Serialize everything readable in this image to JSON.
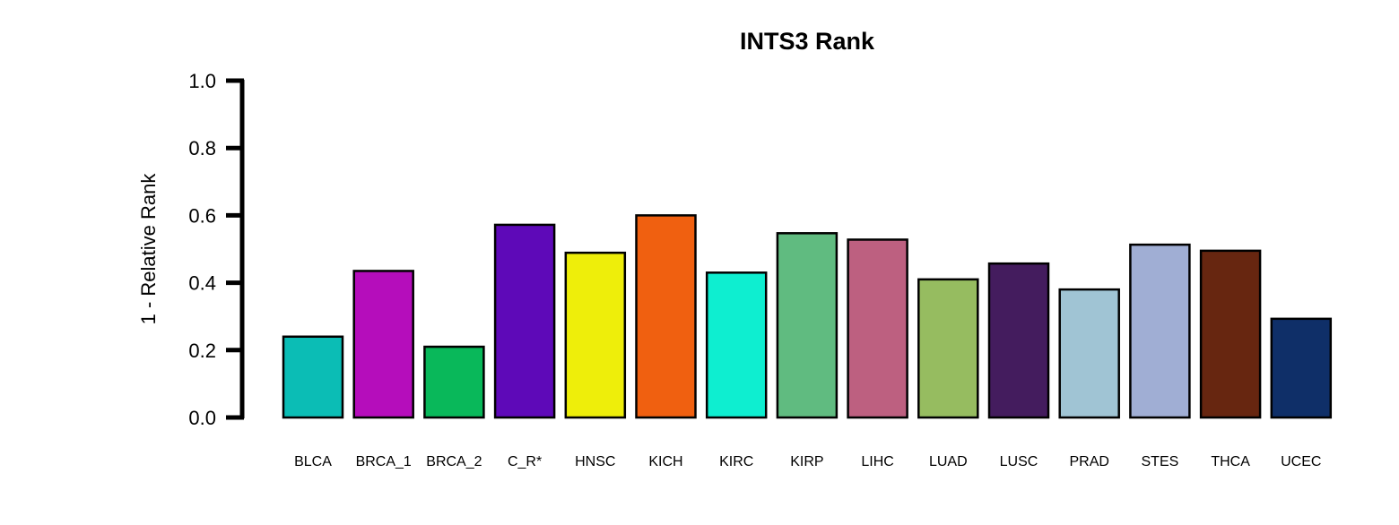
{
  "chart_data": {
    "type": "bar",
    "title": "INTS3 Rank",
    "xlabel": "",
    "ylabel": "1 - Relative Rank",
    "ylim": [
      0,
      1.0
    ],
    "yticks": [
      "0.0",
      "0.2",
      "0.4",
      "0.6",
      "0.8",
      "1.0"
    ],
    "grid": false,
    "categories": [
      "BLCA",
      "BRCA_1",
      "BRCA_2",
      "C_R*",
      "HNSC",
      "KICH",
      "KIRC",
      "KIRP",
      "LIHC",
      "LUAD",
      "LUSC",
      "PRAD",
      "STES",
      "THCA",
      "UCEC"
    ],
    "values": [
      0.24,
      0.435,
      0.21,
      0.572,
      0.489,
      0.6,
      0.43,
      0.547,
      0.528,
      0.41,
      0.457,
      0.38,
      0.513,
      0.495,
      0.293
    ],
    "colors": [
      "#0BBDB5",
      "#B50DBB",
      "#09B85A",
      "#5E09B8",
      "#EEEE0A",
      "#F06010",
      "#0EEED0",
      "#60BB80",
      "#BD6080",
      "#96BC60",
      "#441C5E",
      "#A0C4D4",
      "#A0AED4",
      "#672610",
      "#0F2F68"
    ]
  }
}
